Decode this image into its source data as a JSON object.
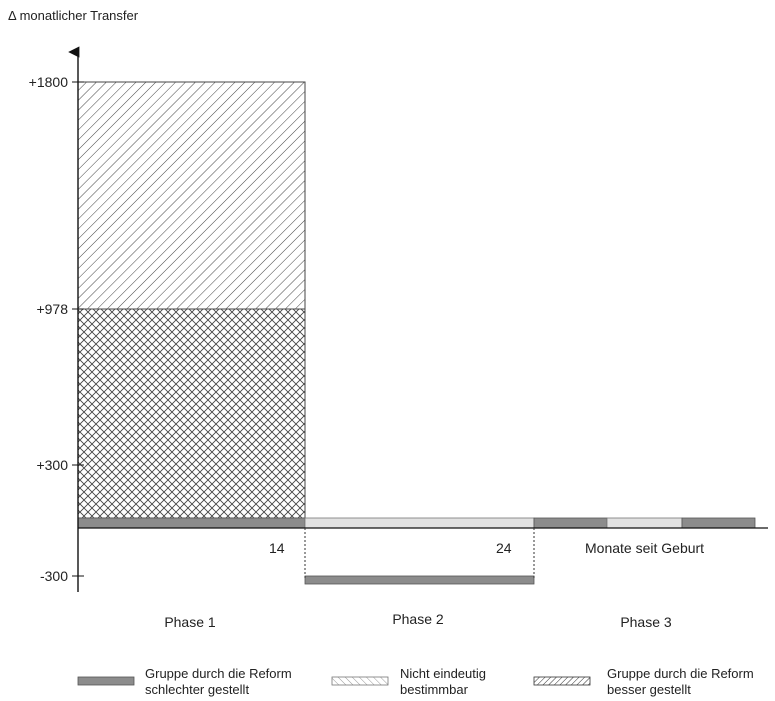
{
  "colors": {
    "dark_bar": "#8c8c8c",
    "light_bar": "#e2e2e2",
    "hatch": "#444444",
    "axis": "#111111"
  },
  "figure": {
    "y_axis_title": "Δ monatlicher Transfer",
    "x_axis_title": "Monate seit Geburt",
    "y_ticks": [
      {
        "value": 1800,
        "label": "+1800"
      },
      {
        "value": 978,
        "label": "+978"
      },
      {
        "value": 300,
        "label": "+300"
      },
      {
        "value": -300,
        "label": "-300"
      }
    ],
    "x_ticks": [
      {
        "value": 14,
        "label": "14"
      },
      {
        "value": 24,
        "label": "24"
      }
    ],
    "phases": [
      "Phase 1",
      "Phase 2",
      "Phase 3"
    ],
    "blocks": [
      {
        "name": "besser gestellt (Phase 1)",
        "x_from": 0,
        "x_to": 14,
        "y_from": 978,
        "y_to": 1800,
        "pattern": "diagonal"
      },
      {
        "name": "nicht eindeutig (Phase 1)",
        "x_from": 0,
        "x_to": 14,
        "y_from": 0,
        "y_to": 978,
        "pattern": "crosshatch"
      }
    ],
    "legend": [
      {
        "key": "dark",
        "label_line1": "Gruppe durch die Reform",
        "label_line2": "schlechter gestellt"
      },
      {
        "key": "light-hatch",
        "label_line1": "Nicht eindeutig",
        "label_line2": "bestimmbar"
      },
      {
        "key": "dense-hatch",
        "label_line1": "Gruppe durch die Reform",
        "label_line2": "besser gestellt"
      }
    ]
  }
}
